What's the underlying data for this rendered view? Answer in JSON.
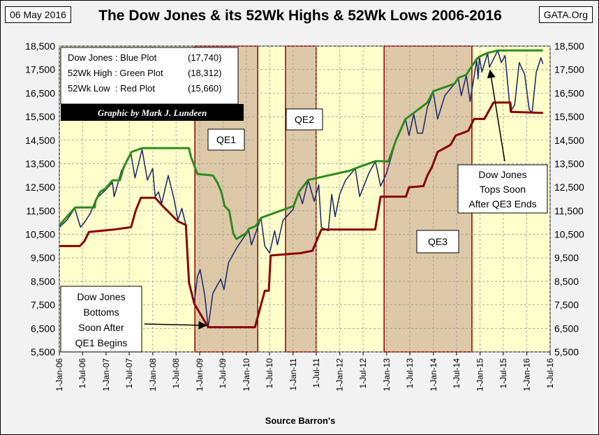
{
  "date_label": "06 May 2016",
  "source_label": "GATA.Org",
  "chart_data": {
    "type": "line",
    "title": "The Dow Jones & its 52Wk Highs & 52Wk Lows 2006-2016",
    "xlabel": "Source Barron's",
    "ylabel": "",
    "ylim": [
      5500,
      18500
    ],
    "xlim": [
      "2006-01-01",
      "2016-07-01"
    ],
    "y_ticks": [
      "5,500",
      "6,500",
      "7,500",
      "8,500",
      "9,500",
      "10,500",
      "11,500",
      "12,500",
      "13,500",
      "14,500",
      "15,500",
      "16,500",
      "17,500",
      "18,500"
    ],
    "x_ticks": [
      "1-Jan-06",
      "1-Jul-06",
      "1-Jan-07",
      "1-Jul-07",
      "1-Jan-08",
      "1-Jul-08",
      "1-Jan-09",
      "1-Jul-09",
      "1-Jan-10",
      "1-Jul-10",
      "1-Jan-11",
      "1-Jul-11",
      "1-Jan-12",
      "1-Jul-12",
      "1-Jan-13",
      "1-Jul-13",
      "1-Jan-14",
      "1-Jul-14",
      "1-Jan-15",
      "1-Jul-15",
      "1-Jan-16",
      "1-Jul-16"
    ],
    "grid": true,
    "legend_lines": [
      {
        "label": "Dow Jones : Blue Plot",
        "value": "(17,740)"
      },
      {
        "label": "52Wk High : Green Plot",
        "value": "(18,312)"
      },
      {
        "label": "52Wk Low  : Red Plot",
        "value": "(15,660)"
      }
    ],
    "credit": "Graphic by Mark J. Lundeen",
    "qe_periods": [
      {
        "label": "QE1",
        "start": "2008-11-25",
        "end": "2010-03-31"
      },
      {
        "label": "QE2",
        "start": "2010-11-03",
        "end": "2011-06-30"
      },
      {
        "label": "QE3",
        "start": "2012-12-12",
        "end": "2014-10-29"
      }
    ],
    "annotations": [
      {
        "text": [
          "Dow Jones",
          "Bottoms",
          "Soon After",
          "QE1 Begins"
        ],
        "target": "2009-03-09"
      },
      {
        "text": [
          "Dow Jones",
          "Tops Soon",
          "After QE3 Ends"
        ],
        "target": "2015-05-19"
      }
    ],
    "series": [
      {
        "name": "Dow Jones",
        "color": "#1f2f6e",
        "points": [
          [
            "2006-01-01",
            10800
          ],
          [
            "2006-03-01",
            11100
          ],
          [
            "2006-05-01",
            11600
          ],
          [
            "2006-06-15",
            10800
          ],
          [
            "2006-07-15",
            11000
          ],
          [
            "2006-09-01",
            11400
          ],
          [
            "2006-10-15",
            12000
          ],
          [
            "2006-12-31",
            12400
          ],
          [
            "2007-02-20",
            12700
          ],
          [
            "2007-03-05",
            12100
          ],
          [
            "2007-05-01",
            13200
          ],
          [
            "2007-07-15",
            13900
          ],
          [
            "2007-08-15",
            12900
          ],
          [
            "2007-10-09",
            14100
          ],
          [
            "2007-11-20",
            12800
          ],
          [
            "2007-12-31",
            13300
          ],
          [
            "2008-01-20",
            12100
          ],
          [
            "2008-02-15",
            12300
          ],
          [
            "2008-03-10",
            11800
          ],
          [
            "2008-05-01",
            13000
          ],
          [
            "2008-06-15",
            12000
          ],
          [
            "2008-07-15",
            11100
          ],
          [
            "2008-08-15",
            11600
          ],
          [
            "2008-09-15",
            10900
          ],
          [
            "2008-10-10",
            8500
          ],
          [
            "2008-11-20",
            7600
          ],
          [
            "2008-12-15",
            8700
          ],
          [
            "2009-01-05",
            9000
          ],
          [
            "2009-02-10",
            7900
          ],
          [
            "2009-03-09",
            6550
          ],
          [
            "2009-04-15",
            8000
          ],
          [
            "2009-06-15",
            8600
          ],
          [
            "2009-07-10",
            8150
          ],
          [
            "2009-08-15",
            9300
          ],
          [
            "2009-10-15",
            9900
          ],
          [
            "2009-12-15",
            10400
          ],
          [
            "2010-01-20",
            10650
          ],
          [
            "2010-02-10",
            10050
          ],
          [
            "2010-04-25",
            11200
          ],
          [
            "2010-05-25",
            10000
          ],
          [
            "2010-07-02",
            9700
          ],
          [
            "2010-08-10",
            10650
          ],
          [
            "2010-09-01",
            10050
          ],
          [
            "2010-10-15",
            11100
          ],
          [
            "2010-12-31",
            11550
          ],
          [
            "2011-02-15",
            12300
          ],
          [
            "2011-03-15",
            11800
          ],
          [
            "2011-04-29",
            12800
          ],
          [
            "2011-06-15",
            11900
          ],
          [
            "2011-07-20",
            12600
          ],
          [
            "2011-08-10",
            10800
          ],
          [
            "2011-10-03",
            10650
          ],
          [
            "2011-10-30",
            12200
          ],
          [
            "2011-11-25",
            11250
          ],
          [
            "2011-12-31",
            12200
          ],
          [
            "2012-02-15",
            12800
          ],
          [
            "2012-05-01",
            13300
          ],
          [
            "2012-06-04",
            12100
          ],
          [
            "2012-08-15",
            13100
          ],
          [
            "2012-10-05",
            13600
          ],
          [
            "2012-11-15",
            12550
          ],
          [
            "2012-12-31",
            13100
          ],
          [
            "2013-03-15",
            14500
          ],
          [
            "2013-05-28",
            15400
          ],
          [
            "2013-06-24",
            14700
          ],
          [
            "2013-08-01",
            15600
          ],
          [
            "2013-08-30",
            14800
          ],
          [
            "2013-10-08",
            14800
          ],
          [
            "2013-11-15",
            15900
          ],
          [
            "2013-12-31",
            16550
          ],
          [
            "2014-02-03",
            15400
          ],
          [
            "2014-04-01",
            16400
          ],
          [
            "2014-07-15",
            17100
          ],
          [
            "2014-08-07",
            16400
          ],
          [
            "2014-09-15",
            17250
          ],
          [
            "2014-10-15",
            16150
          ],
          [
            "2014-12-05",
            17900
          ],
          [
            "2014-12-16",
            17100
          ],
          [
            "2014-12-26",
            18050
          ],
          [
            "2015-01-15",
            17400
          ],
          [
            "2015-03-01",
            18200
          ],
          [
            "2015-03-15",
            17600
          ],
          [
            "2015-05-19",
            18312
          ],
          [
            "2015-06-15",
            17800
          ],
          [
            "2015-07-15",
            18100
          ],
          [
            "2015-08-25",
            15700
          ],
          [
            "2015-09-28",
            16000
          ],
          [
            "2015-11-03",
            17800
          ],
          [
            "2015-12-15",
            17300
          ],
          [
            "2016-01-20",
            15800
          ],
          [
            "2016-02-11",
            15660
          ],
          [
            "2016-03-15",
            17400
          ],
          [
            "2016-04-20",
            18000
          ],
          [
            "2016-05-06",
            17740
          ]
        ]
      },
      {
        "name": "52Wk High",
        "color": "#2e8b1e",
        "points": [
          [
            "2006-01-01",
            10900
          ],
          [
            "2006-01-20",
            11000
          ],
          [
            "2006-03-10",
            11300
          ],
          [
            "2006-05-05",
            11640
          ],
          [
            "2006-10-04",
            11640
          ],
          [
            "2006-10-10",
            11900
          ],
          [
            "2006-11-15",
            12300
          ],
          [
            "2006-12-31",
            12460
          ],
          [
            "2007-02-20",
            12790
          ],
          [
            "2007-04-20",
            12800
          ],
          [
            "2007-05-15",
            13300
          ],
          [
            "2007-06-15",
            13650
          ],
          [
            "2007-07-19",
            14000
          ],
          [
            "2007-10-09",
            14165
          ],
          [
            "2008-10-09",
            14165
          ],
          [
            "2008-10-25",
            13800
          ],
          [
            "2008-12-15",
            13060
          ],
          [
            "2009-04-15",
            13000
          ],
          [
            "2009-05-20",
            12700
          ],
          [
            "2009-06-20",
            12300
          ],
          [
            "2009-07-15",
            11700
          ],
          [
            "2009-08-20",
            11500
          ],
          [
            "2009-09-20",
            10550
          ],
          [
            "2009-10-15",
            10300
          ],
          [
            "2009-11-15",
            10400
          ],
          [
            "2009-12-30",
            10550
          ],
          [
            "2010-01-20",
            10730
          ],
          [
            "2010-03-15",
            10850
          ],
          [
            "2010-04-25",
            11200
          ],
          [
            "2011-01-05",
            11700
          ],
          [
            "2011-02-15",
            12300
          ],
          [
            "2011-04-29",
            12810
          ],
          [
            "2012-03-15",
            13200
          ],
          [
            "2012-05-01",
            13300
          ],
          [
            "2012-10-05",
            13610
          ],
          [
            "2013-01-15",
            13600
          ],
          [
            "2013-03-15",
            14500
          ],
          [
            "2013-05-28",
            15400
          ],
          [
            "2013-08-01",
            15660
          ],
          [
            "2013-11-15",
            16100
          ],
          [
            "2013-12-31",
            16580
          ],
          [
            "2014-06-15",
            16900
          ],
          [
            "2014-07-15",
            17150
          ],
          [
            "2014-09-15",
            17280
          ],
          [
            "2014-12-05",
            17950
          ],
          [
            "2014-12-26",
            18050
          ],
          [
            "2015-03-01",
            18210
          ],
          [
            "2015-05-19",
            18312
          ],
          [
            "2016-05-06",
            18312
          ]
        ]
      },
      {
        "name": "52Wk Low",
        "color": "#8b0000",
        "points": [
          [
            "2006-01-01",
            10000
          ],
          [
            "2006-06-10",
            10000
          ],
          [
            "2006-07-15",
            10200
          ],
          [
            "2006-08-20",
            10600
          ],
          [
            "2007-03-01",
            10700
          ],
          [
            "2007-07-15",
            10800
          ],
          [
            "2007-08-20",
            11500
          ],
          [
            "2007-09-30",
            12050
          ],
          [
            "2008-01-20",
            12050
          ],
          [
            "2008-03-10",
            11750
          ],
          [
            "2008-07-15",
            11050
          ],
          [
            "2008-09-15",
            10900
          ],
          [
            "2008-10-10",
            8450
          ],
          [
            "2008-11-20",
            7550
          ],
          [
            "2009-03-09",
            6550
          ],
          [
            "2010-03-09",
            6550
          ],
          [
            "2010-05-25",
            8100
          ],
          [
            "2010-06-25",
            8100
          ],
          [
            "2010-07-10",
            9600
          ],
          [
            "2011-03-01",
            9700
          ],
          [
            "2011-06-01",
            9800
          ],
          [
            "2011-08-10",
            10700
          ],
          [
            "2012-10-03",
            10700
          ],
          [
            "2012-11-15",
            12100
          ],
          [
            "2013-06-01",
            12100
          ],
          [
            "2013-06-25",
            12500
          ],
          [
            "2013-10-15",
            12550
          ],
          [
            "2013-11-15",
            13000
          ],
          [
            "2013-12-20",
            13350
          ],
          [
            "2014-02-03",
            14000
          ],
          [
            "2014-05-15",
            14300
          ],
          [
            "2014-06-25",
            14700
          ],
          [
            "2014-08-15",
            14800
          ],
          [
            "2014-10-01",
            14900
          ],
          [
            "2014-11-15",
            15400
          ],
          [
            "2015-02-03",
            15400
          ],
          [
            "2015-04-15",
            16100
          ],
          [
            "2015-08-25",
            16100
          ],
          [
            "2015-09-01",
            15700
          ],
          [
            "2016-05-06",
            15660
          ]
        ]
      }
    ]
  }
}
